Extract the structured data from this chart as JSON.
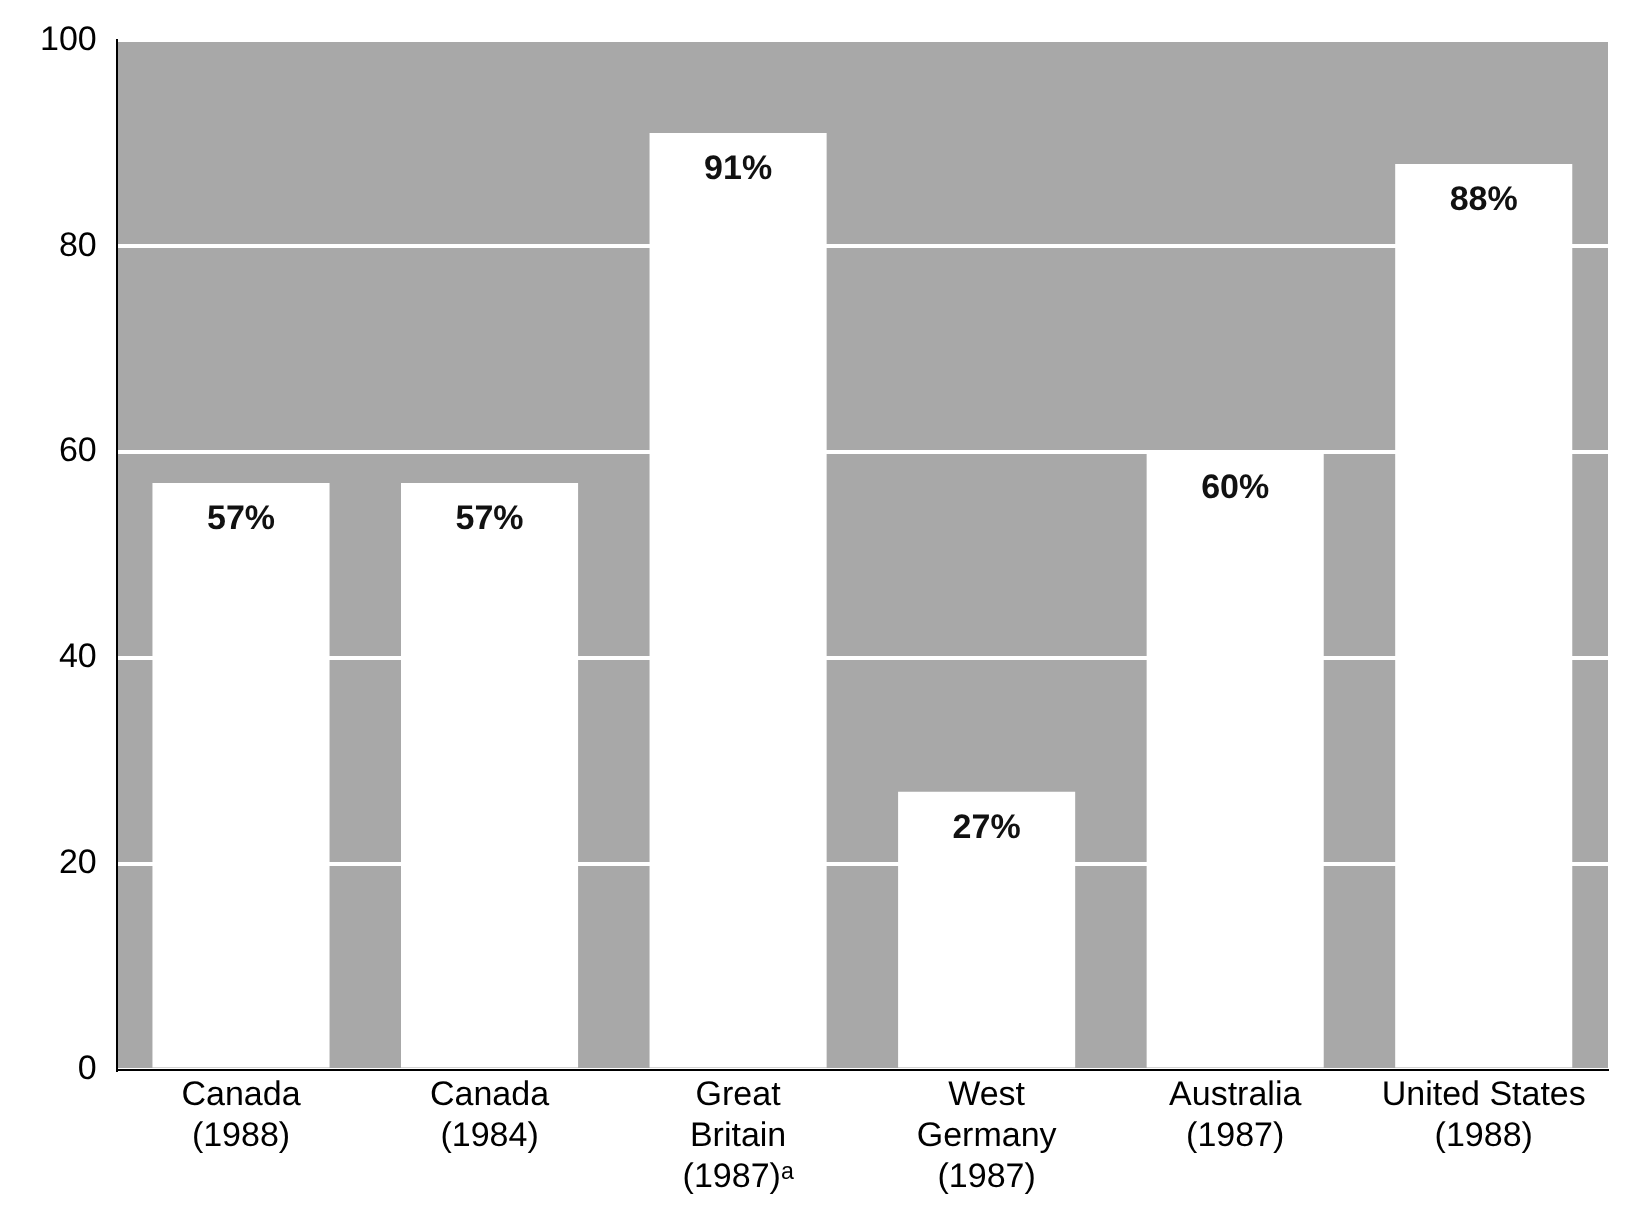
{
  "chart_data": {
    "type": "bar",
    "categories": [
      "Canada\n(1988)",
      "Canada\n(1984)",
      "Great\nBritain\n(1987)ᵃ",
      "West\nGermany\n(1987)",
      "Australia\n(1987)",
      "United States\n(1988)"
    ],
    "values": [
      57,
      57,
      91,
      27,
      60,
      88
    ],
    "value_labels": [
      "57%",
      "57%",
      "91%",
      "27%",
      "60%",
      "88%"
    ],
    "color": "#ffffff",
    "ylim": [
      0,
      100
    ],
    "yticks": [
      0,
      20,
      40,
      60,
      80,
      100
    ],
    "grid": "y",
    "legend": false
  }
}
